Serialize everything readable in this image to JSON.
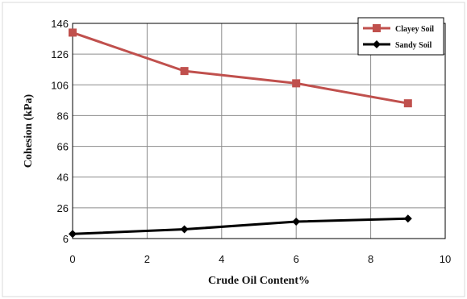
{
  "chart_data": {
    "type": "line",
    "title": "",
    "xlabel": "Crude  Oil Content%",
    "ylabel": "Cohesion (kPa)",
    "xlim": [
      0,
      10
    ],
    "ylim": [
      6,
      146
    ],
    "xticks": [
      0,
      2,
      4,
      6,
      8,
      10
    ],
    "yticks": [
      6,
      26,
      46,
      66,
      86,
      106,
      126,
      146
    ],
    "grid": true,
    "legend_position": "top-right",
    "series": [
      {
        "name": "Clayey Soil",
        "color": "#c0504d",
        "marker": "square",
        "x": [
          0,
          3,
          6,
          9
        ],
        "y": [
          140,
          115,
          107,
          94
        ]
      },
      {
        "name": "Sandy Soil",
        "color": "#000000",
        "marker": "diamond",
        "x": [
          0,
          3,
          6,
          9
        ],
        "y": [
          9,
          12,
          17,
          19
        ]
      }
    ]
  }
}
